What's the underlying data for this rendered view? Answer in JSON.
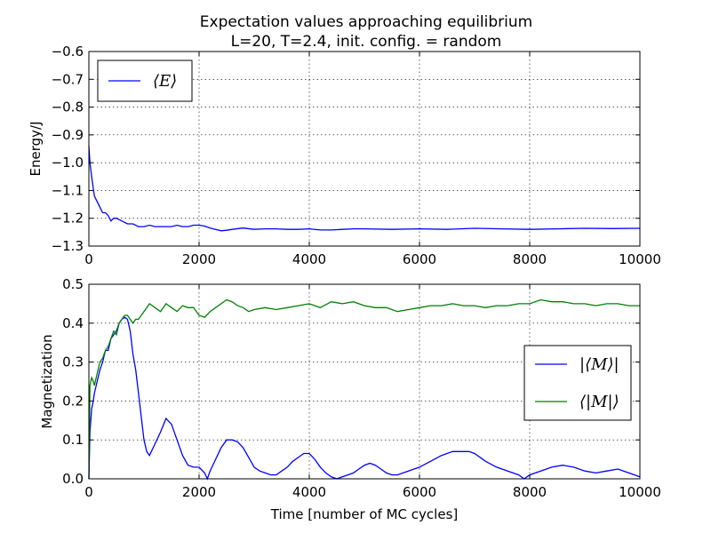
{
  "figure": {
    "title_line1": "Expectation values approaching equilibrium",
    "title_line2": "L=20, T=2.4, init. config. = random"
  },
  "chart_data": [
    {
      "type": "line",
      "ylabel": "Energy/J",
      "xlabel": "",
      "xlim": [
        0,
        10000
      ],
      "ylim": [
        -1.3,
        -0.6
      ],
      "xticks": [
        0,
        2000,
        4000,
        6000,
        8000,
        10000
      ],
      "yticks": [
        -1.3,
        -1.2,
        -1.1,
        -1.0,
        -0.9,
        -0.8,
        -0.7,
        -0.6
      ],
      "xtick_labels": [
        "0",
        "2000",
        "4000",
        "6000",
        "8000",
        "10000"
      ],
      "ytick_labels": [
        "−1.3",
        "−1.2",
        "−1.1",
        "−1.0",
        "−0.9",
        "−0.8",
        "−0.7",
        "−0.6"
      ],
      "grid": true,
      "legend_position": "upper-left",
      "series": [
        {
          "name": "⟨E⟩",
          "color": "#0000ff",
          "x": [
            0,
            20,
            50,
            100,
            150,
            200,
            250,
            300,
            350,
            400,
            450,
            500,
            600,
            700,
            800,
            900,
            1000,
            1100,
            1200,
            1300,
            1400,
            1500,
            1600,
            1700,
            1800,
            1900,
            2000,
            2100,
            2200,
            2300,
            2400,
            2500,
            2600,
            2800,
            3000,
            3200,
            3400,
            3600,
            3800,
            4000,
            4200,
            4400,
            4600,
            4800,
            5000,
            5500,
            6000,
            6500,
            7000,
            7500,
            8000,
            8500,
            9000,
            9500,
            10000
          ],
          "y": [
            -0.94,
            -1.0,
            -1.05,
            -1.12,
            -1.14,
            -1.16,
            -1.18,
            -1.18,
            -1.19,
            -1.21,
            -1.2,
            -1.2,
            -1.21,
            -1.22,
            -1.22,
            -1.23,
            -1.23,
            -1.225,
            -1.23,
            -1.23,
            -1.23,
            -1.23,
            -1.225,
            -1.23,
            -1.23,
            -1.225,
            -1.225,
            -1.228,
            -1.235,
            -1.24,
            -1.245,
            -1.243,
            -1.24,
            -1.235,
            -1.24,
            -1.238,
            -1.238,
            -1.24,
            -1.24,
            -1.238,
            -1.242,
            -1.242,
            -1.24,
            -1.238,
            -1.238,
            -1.24,
            -1.238,
            -1.24,
            -1.236,
            -1.238,
            -1.24,
            -1.238,
            -1.236,
            -1.237,
            -1.236
          ]
        }
      ]
    },
    {
      "type": "line",
      "ylabel": "Magnetization",
      "xlabel": "Time [number of MC cycles]",
      "xlim": [
        0,
        10000
      ],
      "ylim": [
        0.0,
        0.5
      ],
      "xticks": [
        0,
        2000,
        4000,
        6000,
        8000,
        10000
      ],
      "yticks": [
        0.0,
        0.1,
        0.2,
        0.3,
        0.4,
        0.5
      ],
      "xtick_labels": [
        "0",
        "2000",
        "4000",
        "6000",
        "8000",
        "10000"
      ],
      "ytick_labels": [
        "0.0",
        "0.1",
        "0.2",
        "0.3",
        "0.4",
        "0.5"
      ],
      "grid": true,
      "legend_position": "center-right",
      "series": [
        {
          "name": "|⟨M⟩|",
          "color": "#0000ff",
          "x": [
            0,
            20,
            50,
            80,
            100,
            150,
            200,
            250,
            300,
            350,
            400,
            450,
            500,
            550,
            600,
            650,
            700,
            750,
            800,
            850,
            900,
            950,
            1000,
            1050,
            1100,
            1200,
            1300,
            1400,
            1500,
            1600,
            1700,
            1800,
            1900,
            2000,
            2100,
            2150,
            2200,
            2300,
            2400,
            2500,
            2600,
            2700,
            2800,
            2900,
            3000,
            3100,
            3200,
            3300,
            3400,
            3500,
            3600,
            3700,
            3800,
            3900,
            4000,
            4100,
            4200,
            4300,
            4400,
            4500,
            4600,
            4700,
            4800,
            4900,
            5000,
            5100,
            5200,
            5300,
            5400,
            5500,
            5600,
            5700,
            5800,
            5900,
            6000,
            6200,
            6400,
            6600,
            6800,
            6900,
            7000,
            7200,
            7400,
            7600,
            7800,
            7900,
            8000,
            8200,
            8400,
            8600,
            8800,
            9000,
            9200,
            9400,
            9600,
            9800,
            10000
          ],
          "y": [
            0.0,
            0.12,
            0.18,
            0.2,
            0.22,
            0.25,
            0.28,
            0.3,
            0.33,
            0.33,
            0.36,
            0.37,
            0.38,
            0.4,
            0.41,
            0.415,
            0.41,
            0.38,
            0.32,
            0.28,
            0.22,
            0.16,
            0.1,
            0.07,
            0.06,
            0.09,
            0.12,
            0.155,
            0.14,
            0.1,
            0.06,
            0.035,
            0.03,
            0.03,
            0.015,
            0.0,
            0.02,
            0.05,
            0.08,
            0.1,
            0.1,
            0.095,
            0.08,
            0.055,
            0.03,
            0.02,
            0.015,
            0.01,
            0.01,
            0.02,
            0.03,
            0.045,
            0.055,
            0.065,
            0.065,
            0.05,
            0.03,
            0.015,
            0.005,
            0.0,
            0.005,
            0.01,
            0.015,
            0.025,
            0.035,
            0.04,
            0.035,
            0.025,
            0.015,
            0.01,
            0.01,
            0.015,
            0.02,
            0.025,
            0.03,
            0.045,
            0.06,
            0.07,
            0.07,
            0.07,
            0.065,
            0.045,
            0.03,
            0.02,
            0.01,
            0.0,
            0.01,
            0.02,
            0.03,
            0.035,
            0.03,
            0.02,
            0.015,
            0.02,
            0.025,
            0.015,
            0.005
          ]
        },
        {
          "name": "⟨|M|⟩",
          "color": "#008000",
          "x": [
            0,
            20,
            50,
            80,
            100,
            150,
            200,
            250,
            300,
            350,
            400,
            450,
            500,
            550,
            600,
            650,
            700,
            750,
            800,
            850,
            900,
            1000,
            1100,
            1200,
            1300,
            1400,
            1500,
            1600,
            1700,
            1800,
            1900,
            2000,
            2100,
            2200,
            2300,
            2400,
            2500,
            2600,
            2700,
            2800,
            2900,
            3000,
            3200,
            3400,
            3600,
            3800,
            4000,
            4200,
            4400,
            4600,
            4800,
            5000,
            5200,
            5400,
            5600,
            5800,
            6000,
            6200,
            6400,
            6600,
            6800,
            7000,
            7200,
            7400,
            7600,
            7800,
            8000,
            8200,
            8400,
            8600,
            8800,
            9000,
            9200,
            9400,
            9600,
            9800,
            10000
          ],
          "y": [
            0.0,
            0.24,
            0.26,
            0.25,
            0.24,
            0.27,
            0.3,
            0.31,
            0.33,
            0.34,
            0.36,
            0.38,
            0.37,
            0.4,
            0.41,
            0.42,
            0.42,
            0.41,
            0.4,
            0.41,
            0.41,
            0.43,
            0.45,
            0.44,
            0.43,
            0.45,
            0.44,
            0.43,
            0.445,
            0.44,
            0.44,
            0.42,
            0.415,
            0.43,
            0.44,
            0.45,
            0.46,
            0.455,
            0.445,
            0.44,
            0.43,
            0.435,
            0.44,
            0.435,
            0.44,
            0.445,
            0.45,
            0.44,
            0.455,
            0.45,
            0.455,
            0.445,
            0.44,
            0.44,
            0.43,
            0.435,
            0.44,
            0.445,
            0.445,
            0.45,
            0.445,
            0.445,
            0.44,
            0.445,
            0.445,
            0.45,
            0.45,
            0.46,
            0.455,
            0.455,
            0.45,
            0.45,
            0.445,
            0.45,
            0.45,
            0.445,
            0.445
          ]
        }
      ]
    }
  ]
}
